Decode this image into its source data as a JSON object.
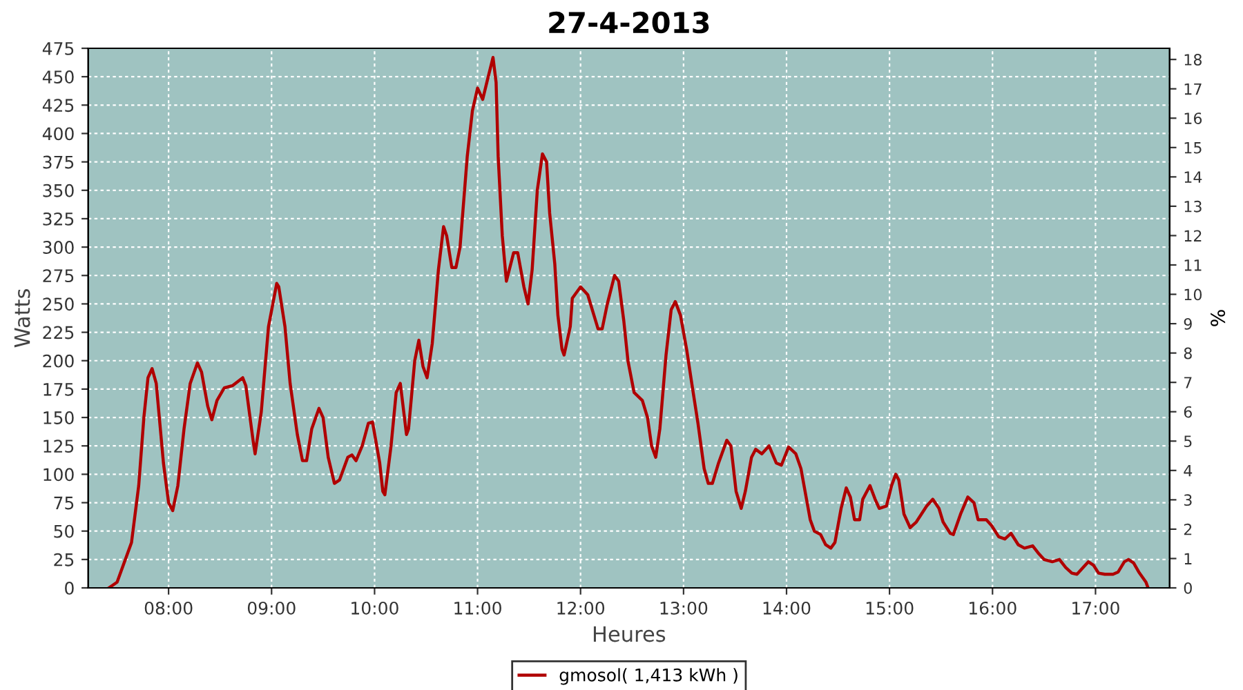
{
  "chart_data": {
    "type": "line",
    "title": "27-4-2013",
    "xlabel": "Heures",
    "ylabel": "Watts",
    "y2label": "%",
    "xlim": [
      7.22,
      17.72
    ],
    "xticks": [
      {
        "value": 8,
        "label": "08:00"
      },
      {
        "value": 9,
        "label": "09:00"
      },
      {
        "value": 10,
        "label": "10:00"
      },
      {
        "value": 11,
        "label": "11:00"
      },
      {
        "value": 12,
        "label": "12:00"
      },
      {
        "value": 13,
        "label": "13:00"
      },
      {
        "value": 14,
        "label": "14:00"
      },
      {
        "value": 15,
        "label": "15:00"
      },
      {
        "value": 16,
        "label": "16:00"
      },
      {
        "value": 17,
        "label": "17:00"
      }
    ],
    "ylim": [
      0,
      475
    ],
    "yticks": [
      0,
      25,
      50,
      75,
      100,
      125,
      150,
      175,
      200,
      225,
      250,
      275,
      300,
      325,
      350,
      375,
      400,
      425,
      450,
      475
    ],
    "y2lim": [
      0,
      18.38
    ],
    "y2ticks": [
      0,
      1,
      2,
      3,
      4,
      5,
      6,
      7,
      8,
      9,
      10,
      11,
      12,
      13,
      14,
      15,
      16,
      17,
      18
    ],
    "grid": true,
    "legend": "bottom",
    "marker": "none",
    "line_style": "solid",
    "series": [
      {
        "name": "gmosol( 1,413 kWh )",
        "color": "#b00000",
        "x": [
          7.42,
          7.5,
          7.64,
          7.71,
          7.76,
          7.8,
          7.84,
          7.88,
          7.95,
          8.0,
          8.04,
          8.09,
          8.15,
          8.21,
          8.28,
          8.32,
          8.38,
          8.42,
          8.47,
          8.54,
          8.62,
          8.72,
          8.75,
          8.82,
          8.84,
          8.9,
          8.97,
          9.05,
          9.07,
          9.13,
          9.18,
          9.25,
          9.3,
          9.34,
          9.39,
          9.46,
          9.5,
          9.55,
          9.61,
          9.66,
          9.74,
          9.78,
          9.82,
          9.88,
          9.94,
          9.98,
          10.05,
          10.08,
          10.1,
          10.16,
          10.21,
          10.25,
          10.31,
          10.33,
          10.39,
          10.43,
          10.47,
          10.51,
          10.56,
          10.62,
          10.67,
          10.7,
          10.75,
          10.79,
          10.83,
          10.9,
          10.95,
          11.0,
          11.05,
          11.09,
          11.15,
          11.18,
          11.2,
          11.24,
          11.28,
          11.35,
          11.39,
          11.45,
          11.49,
          11.53,
          11.58,
          11.63,
          11.67,
          11.7,
          11.75,
          11.78,
          11.82,
          11.84,
          11.9,
          11.92,
          12.0,
          12.07,
          12.13,
          12.17,
          12.21,
          12.26,
          12.33,
          12.37,
          12.42,
          12.46,
          12.52,
          12.6,
          12.65,
          12.69,
          12.73,
          12.77,
          12.83,
          12.88,
          12.92,
          12.97,
          13.03,
          13.08,
          13.14,
          13.2,
          13.24,
          13.28,
          13.34,
          13.42,
          13.46,
          13.51,
          13.56,
          13.6,
          13.66,
          13.7,
          13.76,
          13.83,
          13.9,
          13.95,
          14.02,
          14.09,
          14.14,
          14.19,
          14.23,
          14.27,
          14.33,
          14.38,
          14.43,
          14.47,
          14.53,
          14.58,
          14.62,
          14.66,
          14.71,
          14.74,
          14.81,
          14.86,
          14.9,
          14.97,
          15.02,
          15.06,
          15.09,
          15.14,
          15.2,
          15.26,
          15.36,
          15.42,
          15.48,
          15.52,
          15.59,
          15.62,
          15.69,
          15.76,
          15.82,
          15.86,
          15.94,
          15.99,
          16.06,
          16.12,
          16.18,
          16.25,
          16.31,
          16.39,
          16.45,
          16.5,
          16.58,
          16.65,
          16.71,
          16.77,
          16.82,
          16.87,
          16.93,
          16.98,
          17.03,
          17.09,
          17.17,
          17.22,
          17.28,
          17.32,
          17.37,
          17.42,
          17.49,
          17.51
        ],
        "values": [
          0,
          5,
          40,
          90,
          150,
          185,
          193,
          180,
          110,
          75,
          68,
          90,
          140,
          180,
          198,
          190,
          160,
          148,
          165,
          176,
          178,
          185,
          178,
          130,
          118,
          155,
          230,
          268,
          265,
          230,
          180,
          135,
          112,
          112,
          140,
          158,
          150,
          115,
          92,
          95,
          115,
          117,
          112,
          125,
          145,
          146,
          110,
          85,
          82,
          125,
          172,
          180,
          135,
          140,
          200,
          218,
          195,
          185,
          215,
          280,
          318,
          310,
          282,
          282,
          300,
          380,
          420,
          440,
          430,
          445,
          467,
          445,
          380,
          310,
          270,
          295,
          295,
          265,
          250,
          280,
          350,
          382,
          375,
          330,
          285,
          240,
          210,
          205,
          230,
          255,
          265,
          258,
          240,
          228,
          228,
          250,
          275,
          270,
          235,
          200,
          172,
          165,
          150,
          125,
          115,
          140,
          205,
          245,
          252,
          240,
          210,
          180,
          145,
          105,
          92,
          92,
          110,
          130,
          125,
          85,
          70,
          85,
          115,
          122,
          118,
          125,
          110,
          108,
          124,
          118,
          105,
          80,
          60,
          50,
          47,
          38,
          35,
          40,
          70,
          88,
          80,
          60,
          60,
          78,
          90,
          78,
          70,
          72,
          90,
          100,
          95,
          65,
          53,
          58,
          72,
          78,
          70,
          58,
          48,
          47,
          65,
          80,
          75,
          60,
          60,
          55,
          45,
          43,
          48,
          38,
          35,
          37,
          30,
          25,
          23,
          25,
          18,
          13,
          12,
          17,
          23,
          20,
          13,
          12,
          12,
          14,
          23,
          25,
          22,
          14,
          5,
          0
        ]
      }
    ]
  }
}
